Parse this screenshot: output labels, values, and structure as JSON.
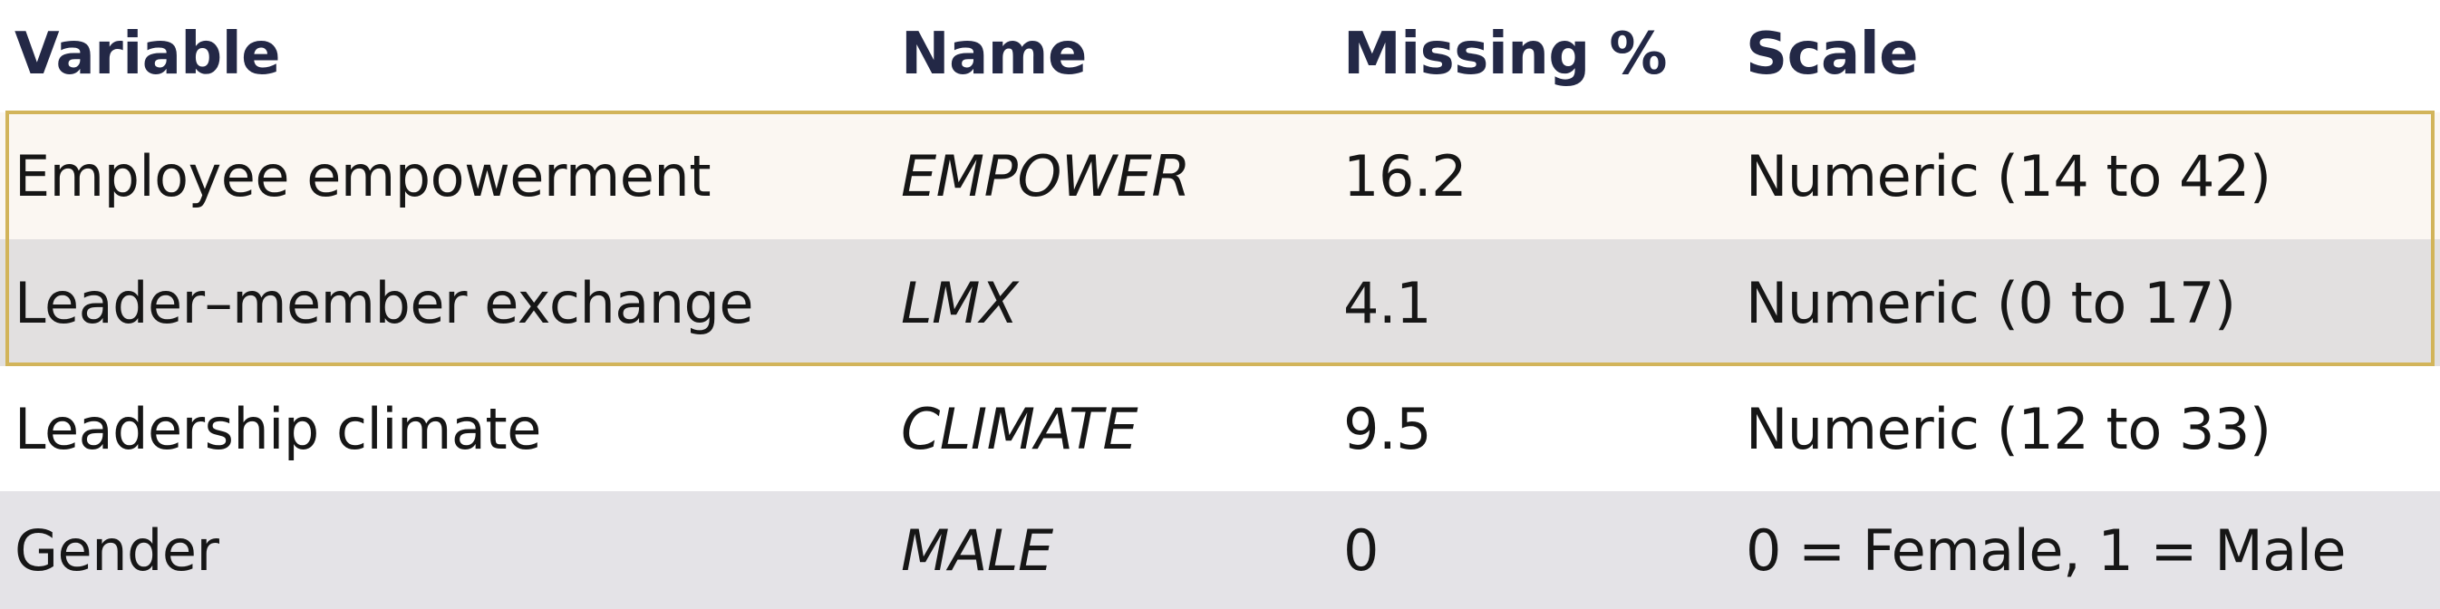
{
  "colors": {
    "header_text": "#232846",
    "body_text": "#161616",
    "highlight_border": "#d2b45a"
  },
  "table": {
    "headers": [
      "Variable",
      "Name",
      "Missing %",
      "Scale"
    ],
    "rows": [
      [
        "Employee empowerment",
        "EMPOWER",
        "16.2",
        "Numeric (14 to 42)"
      ],
      [
        "Leader–member exchange",
        "LMX",
        "4.1",
        "Numeric (0 to 17)"
      ],
      [
        "Leadership climate",
        "CLIMATE",
        "9.5",
        "Numeric (12 to 33)"
      ],
      [
        "Gender",
        "MALE",
        "0",
        "0 = Female, 1 = Male"
      ]
    ]
  }
}
